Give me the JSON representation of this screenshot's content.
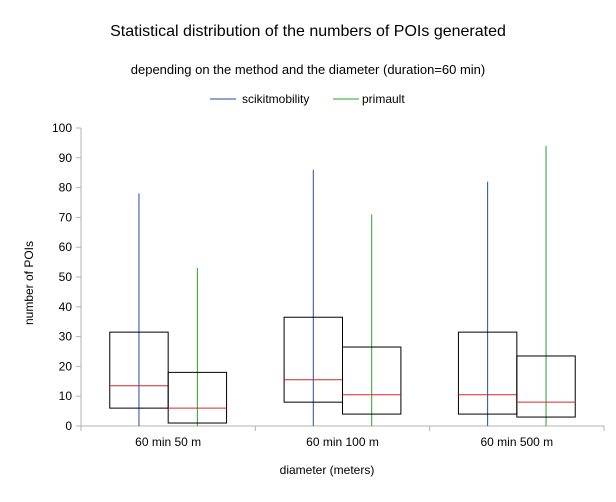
{
  "chart_data": {
    "type": "box",
    "title": "Statistical distribution of the numbers of POIs generated",
    "subtitle": "depending on the method and the diameter (duration=60 min)",
    "xlabel": "diameter (meters)",
    "ylabel": "number of POIs",
    "ylim": [
      0,
      100
    ],
    "yticks": [
      0,
      10,
      20,
      30,
      40,
      50,
      60,
      70,
      80,
      90,
      100
    ],
    "categories": [
      "60 min 50 m",
      "60 min 100 m",
      "60 min 500 m"
    ],
    "grid": false,
    "legend_position": "top",
    "series": [
      {
        "name": "scikitmobility",
        "color": "#1f4e9c",
        "median_color": "#d62728",
        "boxes": [
          {
            "min": 0,
            "q1": 6,
            "median": 13.5,
            "q3": 31.5,
            "max": 78
          },
          {
            "min": 0,
            "q1": 8,
            "median": 15.5,
            "q3": 36.5,
            "max": 86
          },
          {
            "min": 0,
            "q1": 4,
            "median": 10.5,
            "q3": 31.5,
            "max": 82
          }
        ]
      },
      {
        "name": "primault",
        "color": "#2ca02c",
        "median_color": "#d62728",
        "boxes": [
          {
            "min": 0,
            "q1": 1,
            "median": 6,
            "q3": 18,
            "max": 53
          },
          {
            "min": 0,
            "q1": 4,
            "median": 10.5,
            "q3": 26.5,
            "max": 71
          },
          {
            "min": 0,
            "q1": 3,
            "median": 8,
            "q3": 23.5,
            "max": 94
          }
        ]
      }
    ]
  }
}
